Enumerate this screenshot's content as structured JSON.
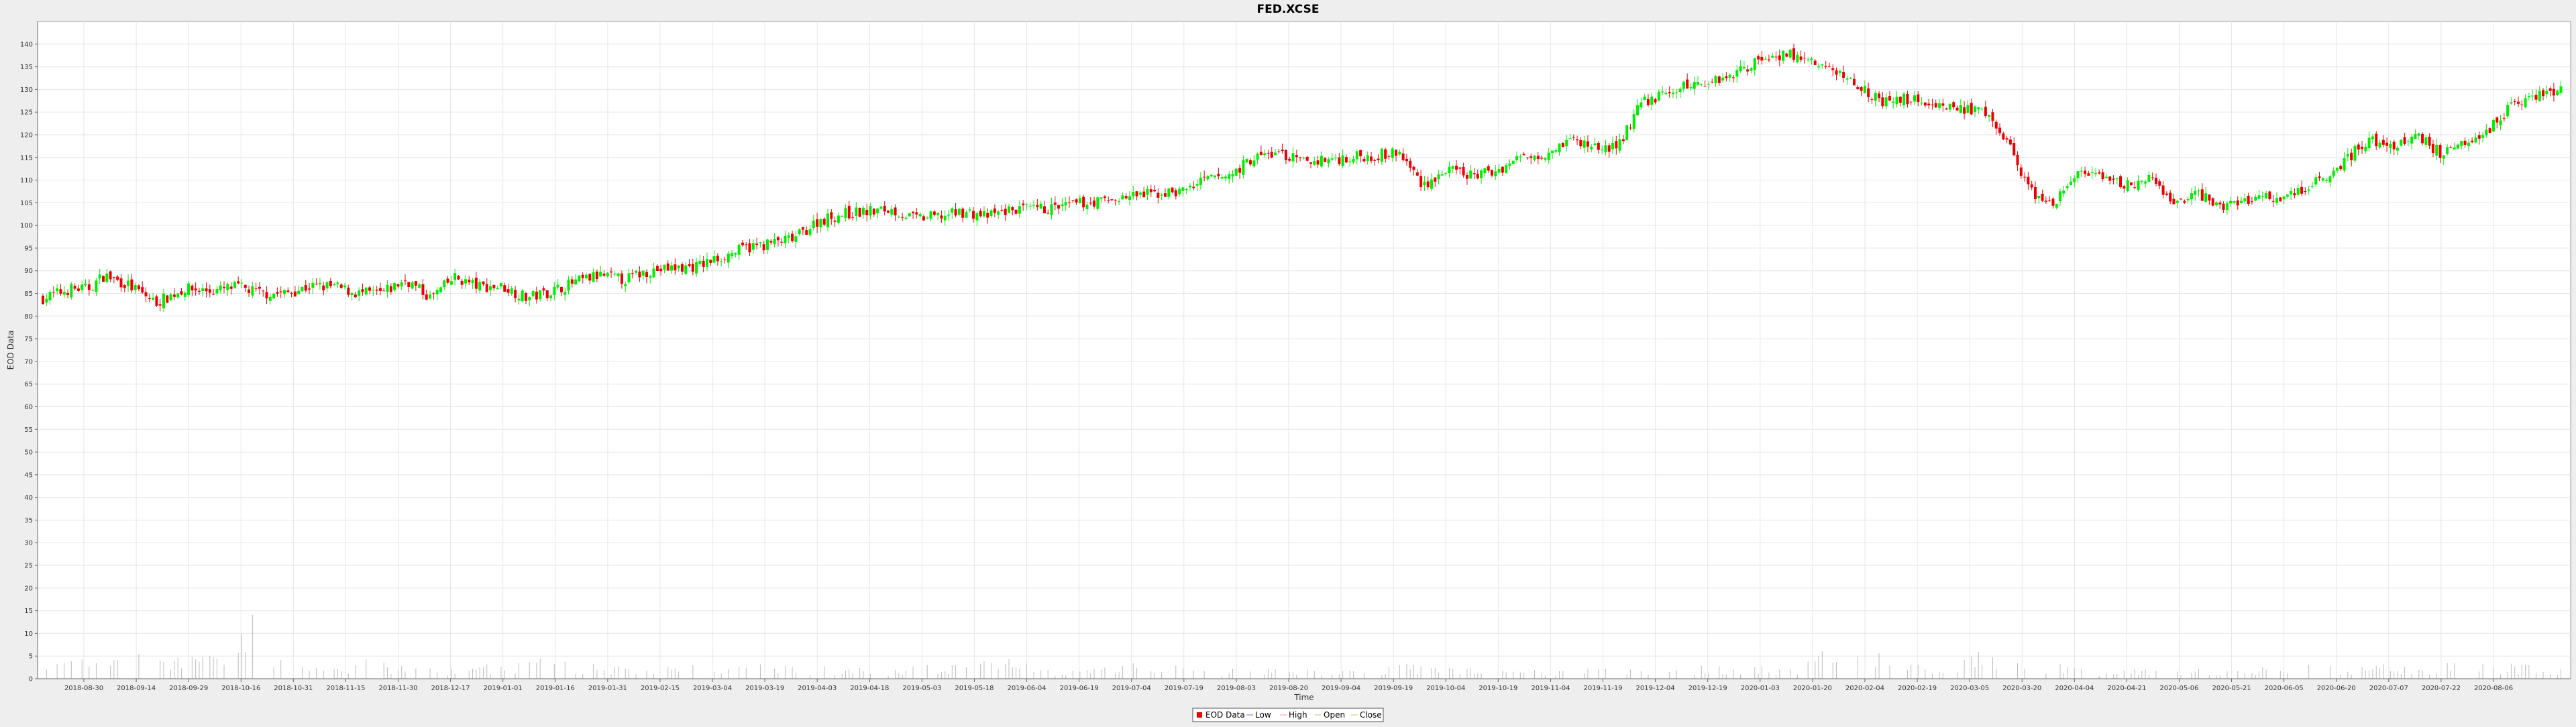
{
  "chart_data": {
    "type": "candlestick",
    "title": "FED.XCSE",
    "xlabel": "Time",
    "ylabel": "EOD Data",
    "ylim": [
      0,
      145
    ],
    "y_ticks": [
      0,
      5,
      10,
      15,
      20,
      25,
      30,
      35,
      40,
      45,
      50,
      55,
      60,
      65,
      70,
      75,
      80,
      85,
      90,
      95,
      100,
      105,
      110,
      115,
      120,
      125,
      130,
      135,
      140
    ],
    "x_ticks": [
      "2018-08-30",
      "2018-09-14",
      "2018-09-29",
      "2018-10-16",
      "2018-10-31",
      "2018-11-15",
      "2018-11-30",
      "2018-12-17",
      "2019-01-01",
      "2019-01-16",
      "2019-01-31",
      "2019-02-15",
      "2019-03-04",
      "2019-03-19",
      "2019-04-03",
      "2019-04-18",
      "2019-05-03",
      "2019-05-18",
      "2019-06-04",
      "2019-06-19",
      "2019-07-04",
      "2019-07-19",
      "2019-08-03",
      "2019-08-20",
      "2019-09-04",
      "2019-09-19",
      "2019-10-04",
      "2019-10-19",
      "2019-11-04",
      "2019-11-19",
      "2019-12-04",
      "2019-12-19",
      "2020-01-03",
      "2020-01-20",
      "2020-02-04",
      "2020-02-19",
      "2020-03-05",
      "2020-03-20",
      "2020-04-04",
      "2020-04-21",
      "2020-05-06",
      "2020-05-21",
      "2020-06-05",
      "2020-06-20",
      "2020-07-07",
      "2020-07-22",
      "2020-08-06"
    ],
    "grid": true,
    "legend_position": "bottom-center",
    "legend": [
      "EOD Data",
      "Low",
      "High",
      "Open",
      "Close"
    ],
    "colors": {
      "up": "#00ee00",
      "down": "#ee0000",
      "volume": "#bbbbbb",
      "grid": "#e6e6e6"
    },
    "series": [
      {
        "name": "Close",
        "values": [
          [
            0,
            84.0
          ],
          [
            17,
            86.0
          ],
          [
            28,
            86.0
          ],
          [
            38,
            89.0
          ],
          [
            52,
            87.0
          ],
          [
            70,
            83.0
          ],
          [
            88,
            86.0
          ],
          [
            106,
            85.5
          ],
          [
            120,
            86.5
          ],
          [
            135,
            85.0
          ],
          [
            150,
            85.0
          ],
          [
            165,
            86.5
          ],
          [
            180,
            86.5
          ],
          [
            195,
            85.0
          ],
          [
            210,
            85.0
          ],
          [
            225,
            88.0
          ],
          [
            240,
            84.0
          ],
          [
            255,
            88.5
          ],
          [
            270,
            86.5
          ],
          [
            285,
            86.5
          ],
          [
            300,
            84.0
          ],
          [
            315,
            85.5
          ],
          [
            330,
            87.5
          ],
          [
            345,
            89.0
          ],
          [
            360,
            88.0
          ],
          [
            375,
            90.0
          ],
          [
            390,
            90.5
          ],
          [
            405,
            91.0
          ],
          [
            420,
            93.0
          ],
          [
            435,
            95.0
          ],
          [
            450,
            96.0
          ],
          [
            465,
            97.0
          ],
          [
            480,
            101.0
          ],
          [
            495,
            102.5
          ],
          [
            510,
            103.0
          ],
          [
            525,
            103.5
          ],
          [
            540,
            101.5
          ],
          [
            555,
            102.0
          ],
          [
            570,
            103.0
          ],
          [
            585,
            102.0
          ],
          [
            600,
            103.5
          ],
          [
            615,
            103.5
          ],
          [
            630,
            104.0
          ],
          [
            645,
            105.0
          ],
          [
            660,
            105.5
          ],
          [
            675,
            106.5
          ],
          [
            690,
            107.0
          ],
          [
            705,
            107.5
          ],
          [
            720,
            110.0
          ],
          [
            735,
            111.0
          ],
          [
            750,
            115.0
          ],
          [
            765,
            116.0
          ],
          [
            780,
            114.0
          ],
          [
            795,
            114.5
          ],
          [
            810,
            115.0
          ],
          [
            825,
            115.5
          ],
          [
            840,
            116.0
          ],
          [
            855,
            109.0
          ],
          [
            870,
            112.0
          ],
          [
            885,
            111.0
          ],
          [
            900,
            112.0
          ],
          [
            915,
            115.0
          ],
          [
            930,
            116.0
          ],
          [
            945,
            119.0
          ],
          [
            960,
            117.5
          ],
          [
            975,
            117.0
          ],
          [
            990,
            127.0
          ],
          [
            1005,
            129.0
          ],
          [
            1020,
            131.0
          ],
          [
            1035,
            132.0
          ],
          [
            1050,
            134.0
          ],
          [
            1065,
            137.0
          ],
          [
            1080,
            138.0
          ],
          [
            1095,
            136.0
          ],
          [
            1110,
            134.0
          ],
          [
            1125,
            131.0
          ],
          [
            1140,
            127.0
          ],
          [
            1155,
            128.0
          ],
          [
            1170,
            127.0
          ],
          [
            1185,
            126.0
          ],
          [
            1200,
            125.0
          ],
          [
            1215,
            120.0
          ],
          [
            1230,
            108.0
          ],
          [
            1245,
            104.0
          ],
          [
            1260,
            112.0
          ],
          [
            1275,
            110.0
          ],
          [
            1290,
            109.0
          ],
          [
            1305,
            110.0
          ],
          [
            1320,
            105.0
          ],
          [
            1335,
            107.0
          ],
          [
            1350,
            104.0
          ],
          [
            1365,
            106.0
          ],
          [
            1380,
            106.0
          ],
          [
            1395,
            107.0
          ],
          [
            1410,
            110.0
          ],
          [
            1425,
            114.0
          ],
          [
            1440,
            119.0
          ],
          [
            1455,
            117.0
          ],
          [
            1470,
            120.0
          ],
          [
            1485,
            116.0
          ],
          [
            1500,
            119.0
          ],
          [
            1515,
            121.0
          ],
          [
            1530,
            127.0
          ],
          [
            1545,
            129.0
          ],
          [
            1560,
            130.0
          ]
        ]
      },
      {
        "name": "Volume",
        "values": [
          [
            0,
            2.0
          ],
          [
            10,
            3.0
          ],
          [
            22,
            5.0
          ],
          [
            40,
            10.0
          ],
          [
            65,
            3.0
          ],
          [
            90,
            5.0
          ],
          [
            110,
            4.0
          ],
          [
            130,
            14.0
          ],
          [
            150,
            3.0
          ],
          [
            175,
            2.0
          ],
          [
            200,
            4.0
          ],
          [
            230,
            2.0
          ],
          [
            260,
            2.0
          ],
          [
            300,
            4.0
          ],
          [
            340,
            3.0
          ],
          [
            380,
            2.0
          ],
          [
            420,
            3.0
          ],
          [
            460,
            3.0
          ],
          [
            500,
            2.0
          ],
          [
            530,
            2.0
          ],
          [
            560,
            3.0
          ],
          [
            590,
            5.0
          ],
          [
            620,
            2.0
          ],
          [
            650,
            2.0
          ],
          [
            680,
            3.0
          ],
          [
            720,
            2.0
          ],
          [
            760,
            2.0
          ],
          [
            800,
            2.0
          ],
          [
            840,
            3.0
          ],
          [
            880,
            2.0
          ],
          [
            920,
            2.0
          ],
          [
            960,
            2.0
          ],
          [
            1000,
            2.0
          ],
          [
            1040,
            3.0
          ],
          [
            1080,
            2.0
          ],
          [
            1120,
            8.0
          ],
          [
            1150,
            3.0
          ],
          [
            1180,
            3.0
          ],
          [
            1205,
            6.0
          ],
          [
            1230,
            4.0
          ],
          [
            1260,
            2.0
          ],
          [
            1290,
            2.0
          ],
          [
            1330,
            2.0
          ],
          [
            1370,
            2.0
          ],
          [
            1410,
            3.0
          ],
          [
            1450,
            3.0
          ],
          [
            1490,
            3.0
          ],
          [
            1530,
            3.0
          ],
          [
            1560,
            2.0
          ]
        ]
      }
    ]
  }
}
